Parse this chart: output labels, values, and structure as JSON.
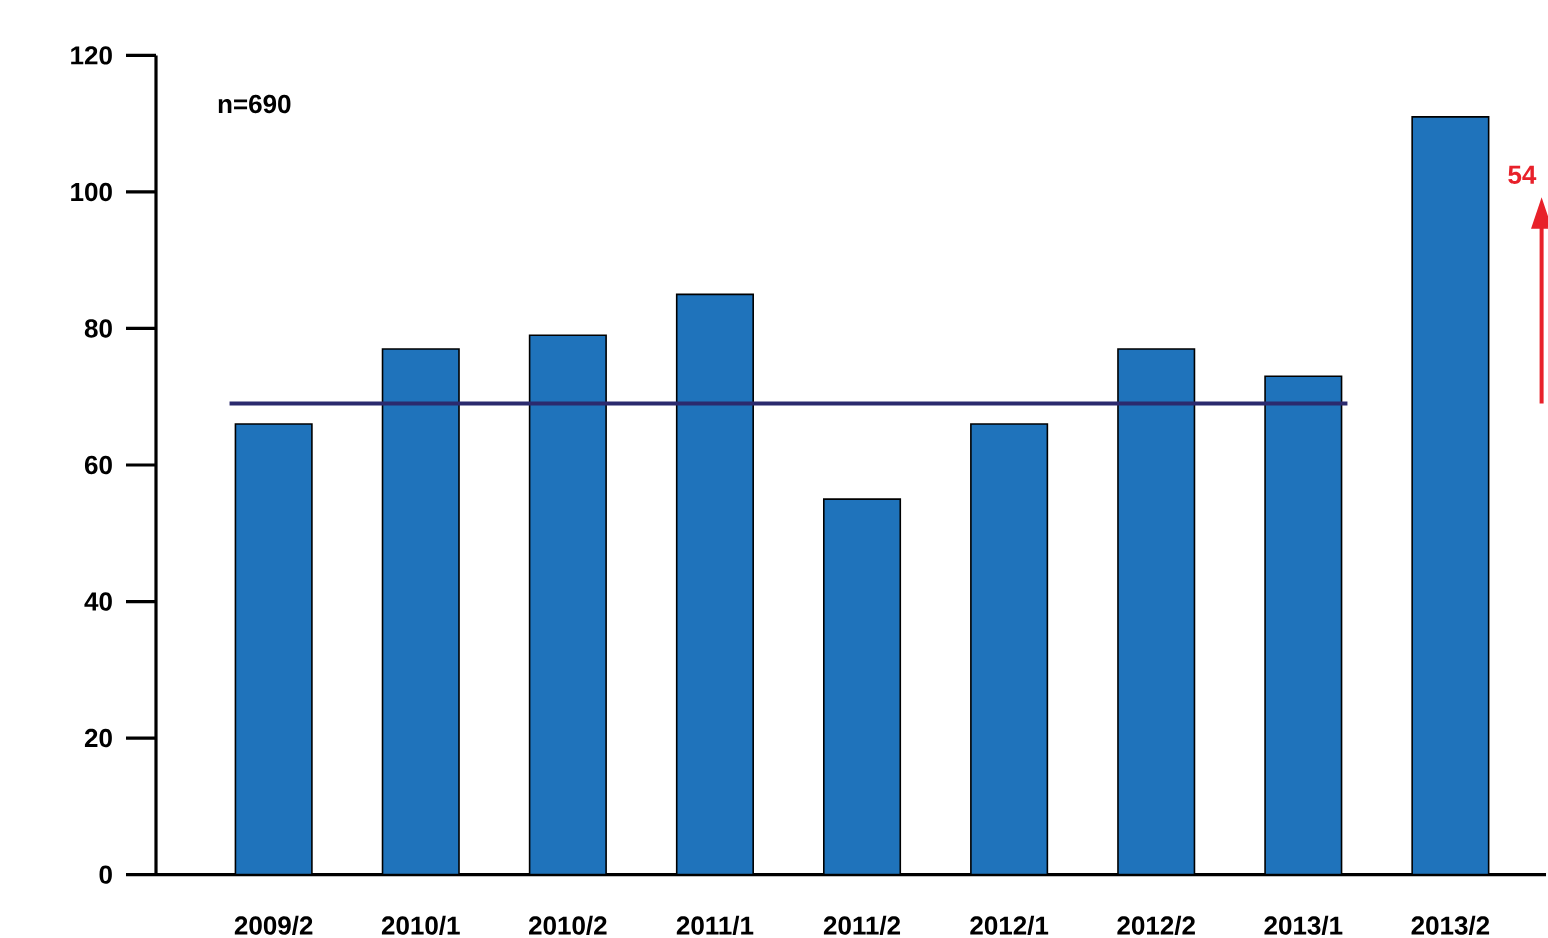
{
  "chart_data": {
    "type": "bar",
    "categories": [
      "2009/2",
      "2010/1",
      "2010/2",
      "2011/1",
      "2011/2",
      "2012/1",
      "2012/2",
      "2013/1",
      "2013/2"
    ],
    "values": [
      66,
      77,
      79,
      85,
      55,
      66,
      77,
      73,
      111
    ],
    "color": "#1f73bb",
    "ylim": [
      0,
      120
    ],
    "yticks": [
      0,
      20,
      40,
      60,
      80,
      100,
      120
    ],
    "ref_lines": [
      {
        "axis": "y",
        "value": 69,
        "color": "#2b2a6e"
      }
    ],
    "annotations": [
      "n=690",
      "54"
    ],
    "grid": false
  }
}
